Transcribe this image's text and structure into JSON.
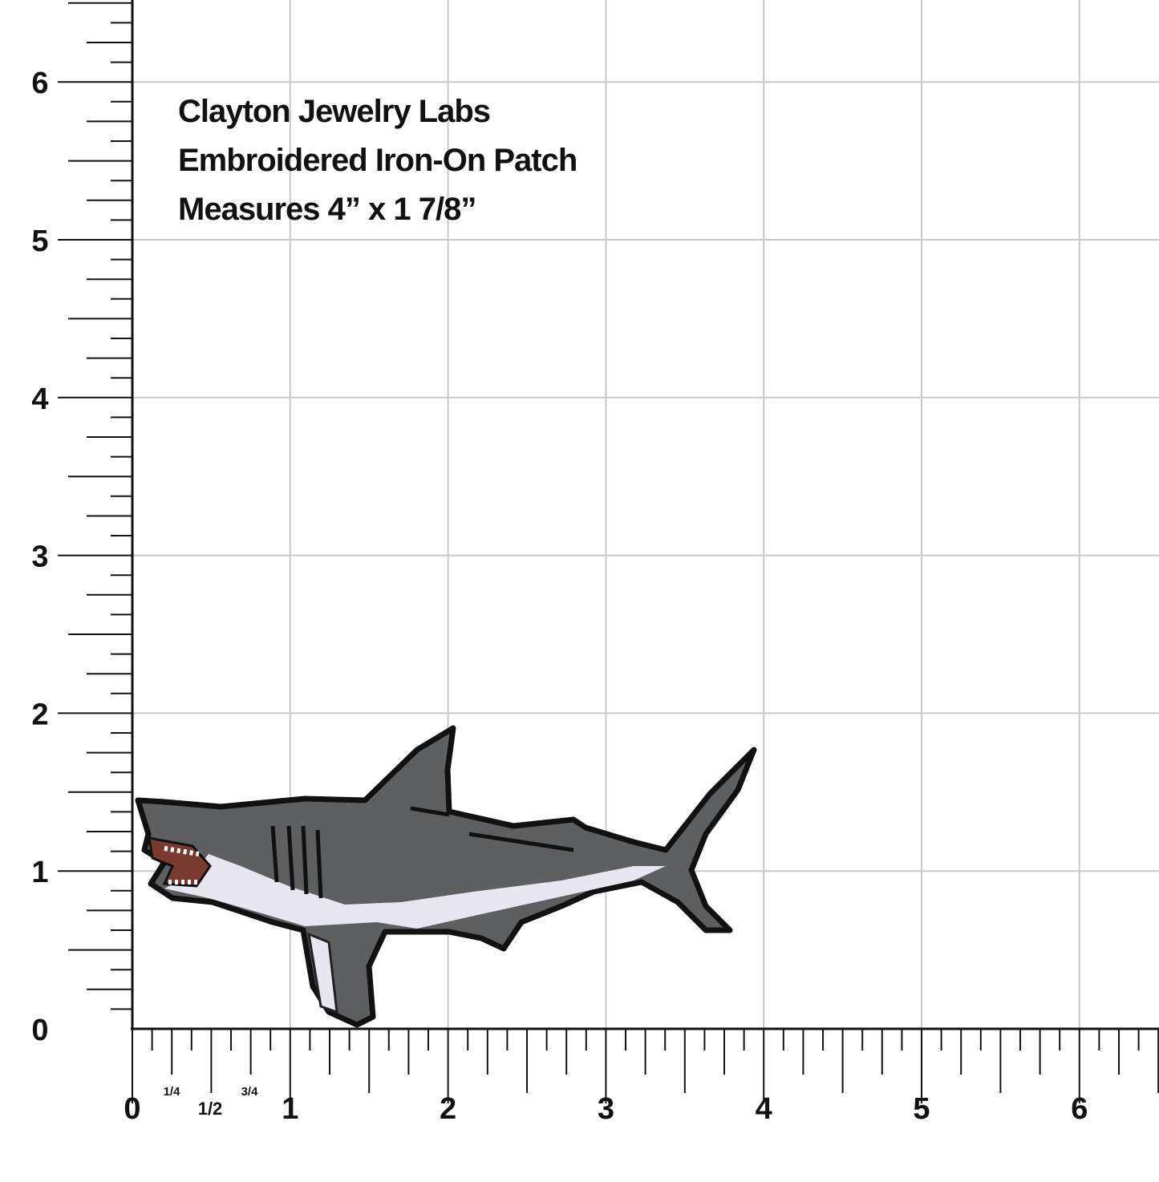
{
  "annotation": {
    "lines": [
      "Clayton Jewelry Labs",
      "Embroidered Iron-On Patch",
      "Measures 4” x 1 7/8”"
    ]
  },
  "ruler": {
    "x_labels": [
      "0",
      "1",
      "2",
      "3",
      "4",
      "5",
      "6"
    ],
    "y_labels": [
      "0",
      "1",
      "2",
      "3",
      "4",
      "5",
      "6"
    ],
    "fractions": [
      "1/4",
      "1/2",
      "3/4"
    ]
  }
}
